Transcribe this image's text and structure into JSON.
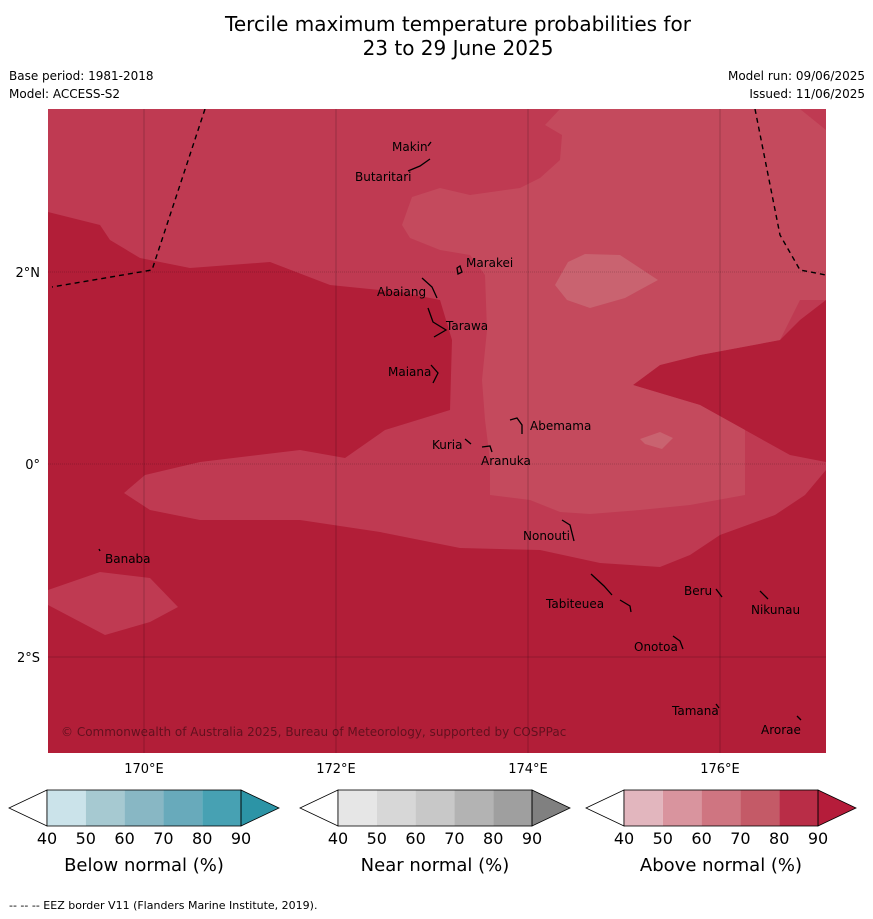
{
  "title": "Tercile maximum temperature probabilities for\n23 to 29 June 2025",
  "title_line1": "Tercile maximum temperature probabilities for",
  "title_line2": "23 to 29 June 2025",
  "meta": {
    "base_period": "Base period: 1981-2018",
    "model": "Model: ACCESS-S2",
    "model_run": "Model run: 09/06/2025",
    "issued": "Issued: 11/06/2025"
  },
  "map": {
    "copyright": "© Commonwealth of Australia 2025, Bureau of Meteorology, supported by COSPPac",
    "lat_labels": [
      "2°N",
      "0°",
      "2°S"
    ],
    "lon_labels": [
      "170°E",
      "172°E",
      "174°E",
      "176°E"
    ],
    "places": [
      "Makin",
      "Butaritari",
      "Marakei",
      "Abaiang",
      "Tarawa",
      "Maiana",
      "Abemama",
      "Kuria",
      "Aranuka",
      "Nonouti",
      "Banaba",
      "Beru",
      "Nikunau",
      "Tabiteuea",
      "Onotoa",
      "Tamana",
      "Arorae"
    ],
    "colors": {
      "above_90": "#b21e38",
      "above_80": "#bf3a52",
      "above_70": "#c44a5d",
      "above_60": "#c96370"
    }
  },
  "colorbars": {
    "ticks": [
      "40",
      "50",
      "60",
      "70",
      "80",
      "90"
    ],
    "below": {
      "title": "Below normal (%)",
      "colors": [
        "#ffffff",
        "#cbe3ea",
        "#a6c9d1",
        "#88b7c4",
        "#68aabb",
        "#47a1b3",
        "#2c94a6"
      ]
    },
    "near": {
      "title": "Near normal (%)",
      "colors": [
        "#ffffff",
        "#e6e6e6",
        "#d7d7d7",
        "#c8c8c8",
        "#b3b3b3",
        "#9f9f9f",
        "#808080"
      ]
    },
    "above": {
      "title": "Above normal (%)",
      "colors": [
        "#ffffff",
        "#e2b6be",
        "#d9949e",
        "#cf7581",
        "#c45a67",
        "#b92d47",
        "#b51c3a"
      ]
    }
  },
  "footnote": "--  --  -- EEZ border V11 (Flanders Marine Institute, 2019)."
}
